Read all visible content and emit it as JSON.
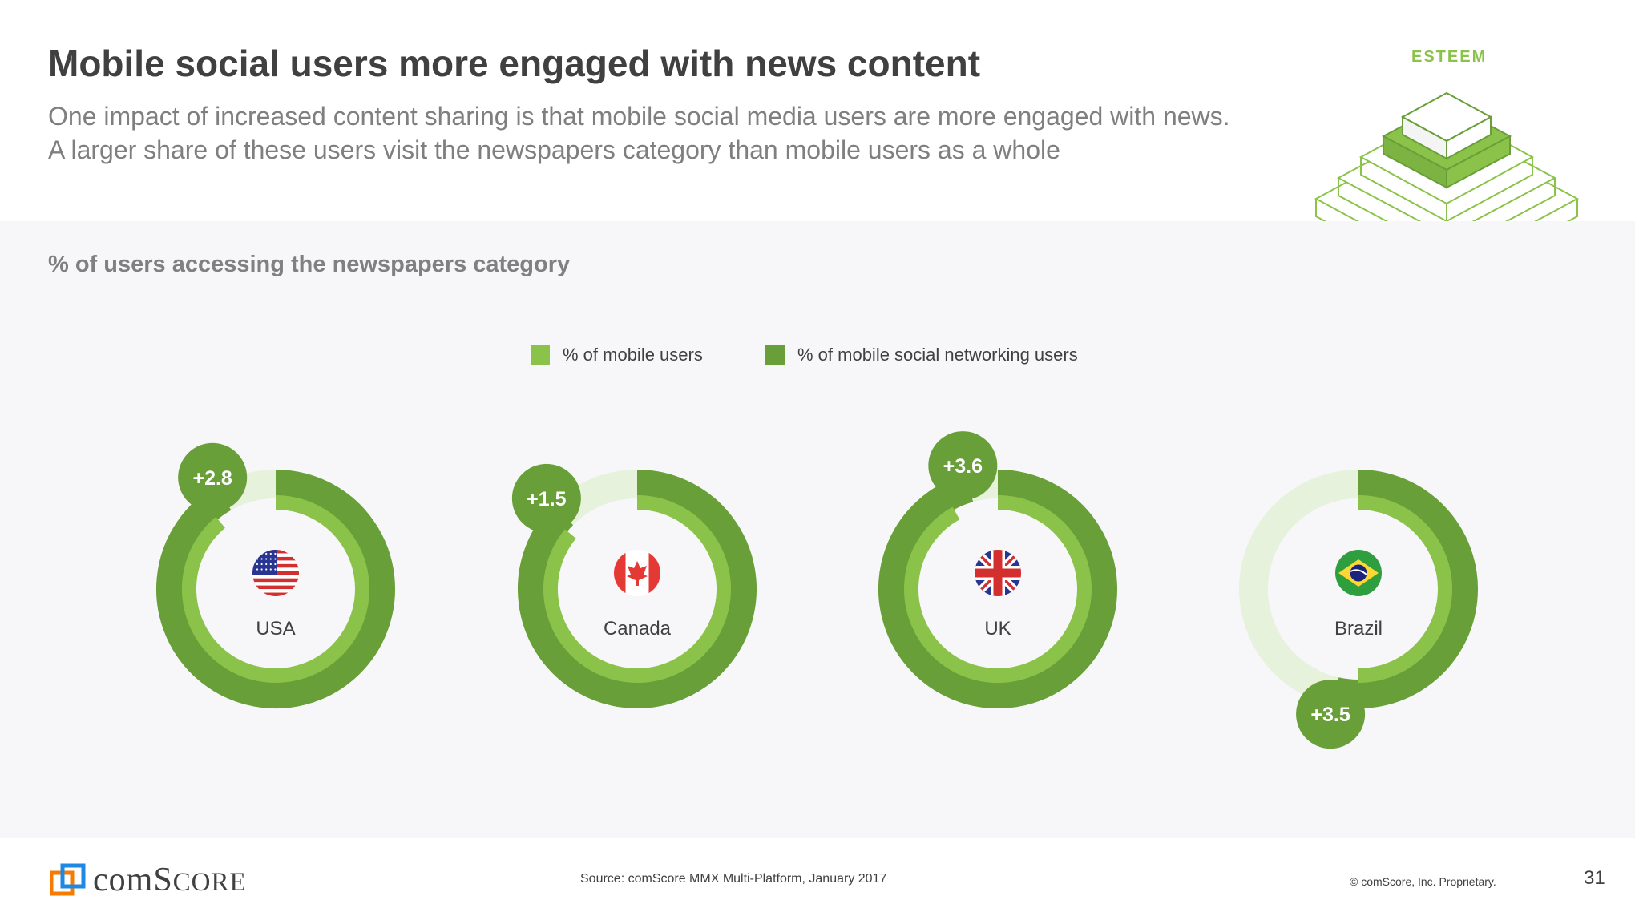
{
  "header": {
    "title": "Mobile social users more engaged with news content",
    "subtitle_lines": [
      "One impact of increased content sharing is that mobile social media users are more engaged with news.",
      "A larger share of these users visit the newspapers category than mobile users as a whole"
    ],
    "brand": "ESTEEM"
  },
  "chart_title": "% of users accessing the newspapers category",
  "legend": {
    "mobile": "% of mobile users",
    "social": "% of mobile social networking users"
  },
  "colors": {
    "mobile": "#8bc34a",
    "social": "#689f38",
    "track": "#e6f2dc",
    "text": "#404040",
    "muted": "#7f7f7f"
  },
  "chart_data": {
    "type": "donut",
    "title": "% of users accessing the newspapers category",
    "categories": [
      "USA",
      "Canada",
      "UK",
      "Brazil"
    ],
    "series": [
      {
        "name": "% of mobile users",
        "values": [
          89.0,
          86.0,
          92.0,
          50.0
        ]
      },
      {
        "name": "% of mobile social networking users",
        "values": [
          91.8,
          87.5,
          95.6,
          53.5
        ]
      }
    ],
    "differences": [
      "+2.8",
      "+1.5",
      "+3.6",
      "+3.5"
    ],
    "unit": "%"
  },
  "footer": {
    "source": "Source: comScore MMX Multi-Platform, January 2017",
    "copyright": "© comScore, Inc. Proprietary.",
    "page_number": "31",
    "logo_text_prefix": "com",
    "logo_text_s": "S",
    "logo_text_suffix": "CORE"
  }
}
